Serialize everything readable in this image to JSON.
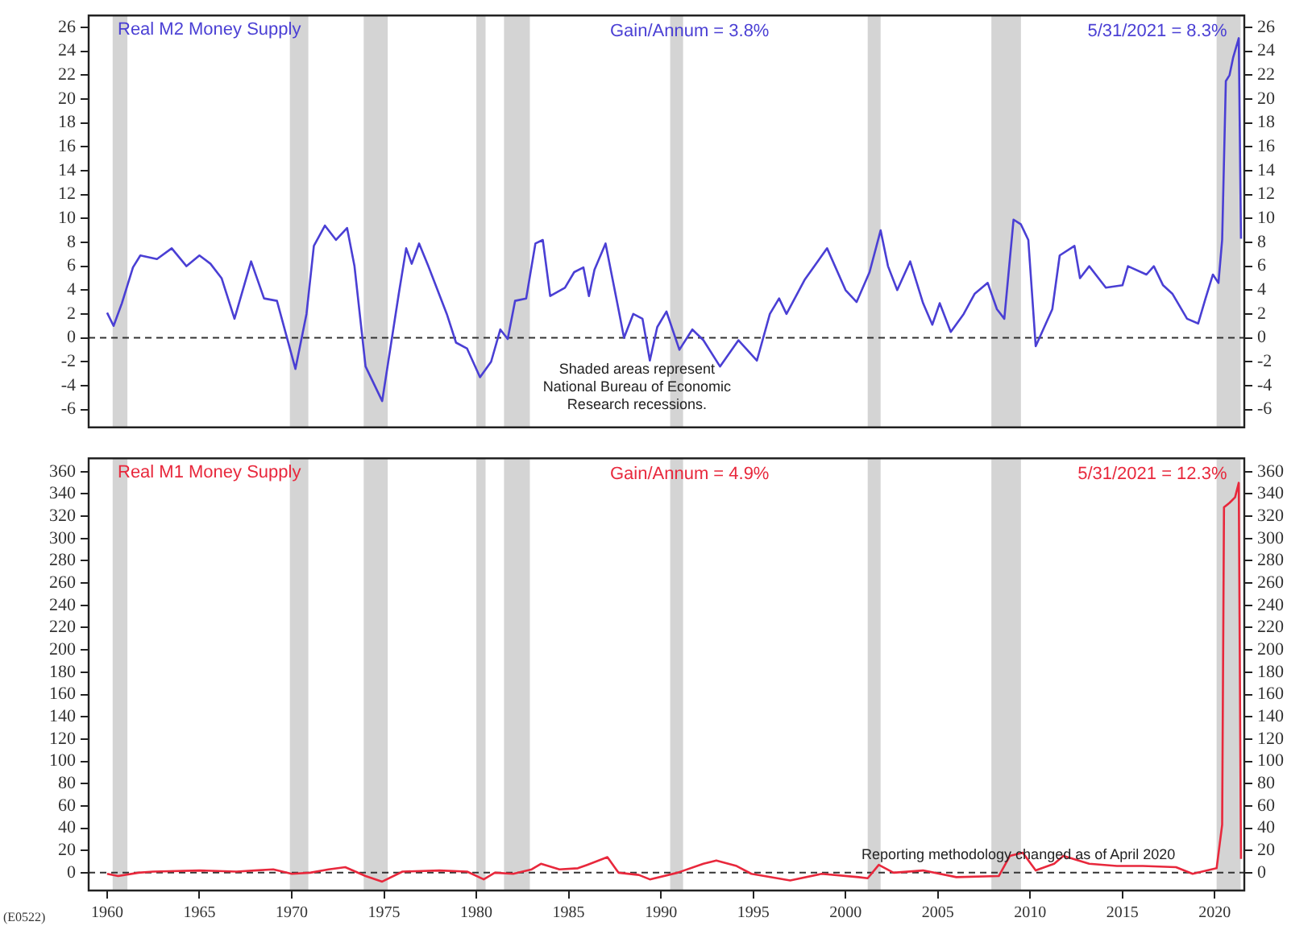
{
  "chart_data": [
    {
      "type": "line",
      "title": "Real M2 Money Supply",
      "marker": "none",
      "line_style": "solid",
      "grid": false,
      "legend": false,
      "tick_labels": "y",
      "xlim": [
        1959,
        2021.6
      ],
      "xticks": [
        1960,
        1965,
        1970,
        1975,
        1980,
        1985,
        1990,
        1995,
        2000,
        2005,
        2010,
        2015,
        2020
      ],
      "ylim": [
        -7.5,
        27
      ],
      "yticks": [
        -6,
        -4,
        -2,
        0,
        2,
        4,
        6,
        8,
        10,
        12,
        14,
        16,
        18,
        20,
        22,
        24,
        26
      ],
      "y2lim": [
        -7.5,
        27
      ],
      "y2ticks": [
        -6,
        -4,
        -2,
        0,
        2,
        4,
        6,
        8,
        10,
        12,
        14,
        16,
        18,
        20,
        22,
        24,
        26
      ],
      "series": [
        {
          "color": "#4a3fd4",
          "x": [
            1960.0,
            1960.35,
            1960.8,
            1961.4,
            1961.8,
            1962.7,
            1963.5,
            1964.3,
            1965.0,
            1965.6,
            1966.2,
            1966.9,
            1967.8,
            1968.5,
            1969.2,
            1970.2,
            1970.8,
            1971.2,
            1971.8,
            1972.4,
            1973.0,
            1973.4,
            1974.0,
            1974.9,
            1975.8,
            1976.2,
            1976.5,
            1976.9,
            1977.4,
            1978.4,
            1978.9,
            1979.5,
            1980.2,
            1980.8,
            1981.3,
            1981.7,
            1982.1,
            1982.7,
            1983.2,
            1983.6,
            1984.0,
            1984.8,
            1985.3,
            1985.8,
            1986.1,
            1986.4,
            1987.0,
            1987.7,
            1988.0,
            1988.5,
            1989.0,
            1989.4,
            1989.8,
            1990.3,
            1991.0,
            1991.7,
            1992.3,
            1993.2,
            1994.2,
            1995.2,
            1995.9,
            1996.4,
            1996.8,
            1997.8,
            1999.0,
            2000.0,
            2000.6,
            2001.3,
            2001.9,
            2002.3,
            2002.8,
            2003.5,
            2004.2,
            2004.7,
            2005.1,
            2005.7,
            2006.4,
            2007.0,
            2007.7,
            2008.2,
            2008.6,
            2009.1,
            2009.5,
            2009.9,
            2010.3,
            2011.2,
            2011.6,
            2012.4,
            2012.7,
            2013.2,
            2014.1,
            2015.0,
            2015.3,
            2016.3,
            2016.7,
            2017.2,
            2017.7,
            2018.5,
            2019.1,
            2019.5,
            2019.9,
            2020.2,
            2020.4,
            2020.6,
            2020.8,
            2021.0,
            2021.3,
            2021.42
          ],
          "values": [
            2.1,
            1.0,
            2.9,
            5.9,
            6.9,
            6.6,
            7.5,
            6.0,
            6.9,
            6.2,
            5.0,
            1.6,
            6.4,
            3.3,
            3.1,
            -2.6,
            2.0,
            7.7,
            9.4,
            8.2,
            9.2,
            6.0,
            -2.4,
            -5.3,
            3.7,
            7.5,
            6.2,
            7.9,
            6.0,
            2.0,
            -0.4,
            -0.9,
            -3.3,
            -2.0,
            0.7,
            -0.1,
            3.1,
            3.3,
            7.9,
            8.2,
            3.5,
            4.2,
            5.5,
            5.9,
            3.5,
            5.7,
            7.9,
            2.4,
            0,
            2.0,
            1.6,
            -1.9,
            0.9,
            2.2,
            -1.0,
            0.7,
            -0.2,
            -2.4,
            -0.2,
            -1.9,
            2.0,
            3.3,
            2.0,
            4.9,
            7.5,
            4.0,
            3.0,
            5.5,
            9.0,
            6.0,
            4.0,
            6.4,
            2.9,
            1.1,
            2.9,
            0.5,
            2.0,
            3.7,
            4.6,
            2.4,
            1.6,
            9.9,
            9.5,
            8.2,
            -0.7,
            2.4,
            6.9,
            7.7,
            5.0,
            6.0,
            4.2,
            4.4,
            6.0,
            5.3,
            6.0,
            4.4,
            3.7,
            1.6,
            1.2,
            3.3,
            5.3,
            4.6,
            8.2,
            21.5,
            22,
            23.5,
            25.1,
            8.3
          ]
        }
      ],
      "ref_lines": [
        {
          "axis": "y",
          "value": 0,
          "color": "#333333",
          "line_style": "dashed"
        }
      ],
      "bands": [
        {
          "axis": "x",
          "from": 1960.3,
          "to": 1961.1,
          "color": "#d4d4d4"
        },
        {
          "axis": "x",
          "from": 1969.9,
          "to": 1970.9,
          "color": "#d4d4d4"
        },
        {
          "axis": "x",
          "from": 1973.9,
          "to": 1975.2,
          "color": "#d4d4d4"
        },
        {
          "axis": "x",
          "from": 1980.0,
          "to": 1980.5,
          "color": "#d4d4d4"
        },
        {
          "axis": "x",
          "from": 1981.5,
          "to": 1982.9,
          "color": "#d4d4d4"
        },
        {
          "axis": "x",
          "from": 1990.5,
          "to": 1991.2,
          "color": "#d4d4d4"
        },
        {
          "axis": "x",
          "from": 2001.2,
          "to": 2001.9,
          "color": "#d4d4d4"
        },
        {
          "axis": "x",
          "from": 2007.9,
          "to": 2009.5,
          "color": "#d4d4d4"
        },
        {
          "axis": "x",
          "from": 2020.1,
          "to": 2021.4,
          "color": "#d4d4d4"
        }
      ],
      "annotations": [
        "Gain/Annum = 3.8%",
        "5/31/2021 = 8.3%",
        "Shaded areas represent National Bureau of Economic Research recessions."
      ]
    },
    {
      "type": "line",
      "title": "Real M1 Money Supply",
      "marker": "none",
      "line_style": "solid",
      "grid": false,
      "legend": false,
      "xlim": [
        1959,
        2021.6
      ],
      "xticks": [
        1960,
        1965,
        1970,
        1975,
        1980,
        1985,
        1990,
        1995,
        2000,
        2005,
        2010,
        2015,
        2020
      ],
      "ylim": [
        -16,
        372
      ],
      "yticks": [
        0,
        20,
        40,
        60,
        80,
        100,
        120,
        140,
        160,
        180,
        200,
        220,
        240,
        260,
        280,
        300,
        320,
        340,
        360
      ],
      "y2lim": [
        -16,
        372
      ],
      "y2ticks": [
        0,
        20,
        40,
        60,
        80,
        100,
        120,
        140,
        160,
        180,
        200,
        220,
        240,
        260,
        280,
        300,
        320,
        340,
        360
      ],
      "series": [
        {
          "color": "#e8283c",
          "x": [
            1960.0,
            1960.6,
            1961.7,
            1962.5,
            1965.0,
            1967.0,
            1968.0,
            1969.0,
            1970.0,
            1971.0,
            1972.0,
            1972.9,
            1974.0,
            1974.9,
            1976.0,
            1978.0,
            1979.5,
            1980.4,
            1981.0,
            1982.0,
            1983.0,
            1983.5,
            1984.5,
            1985.5,
            1986.0,
            1987.1,
            1987.7,
            1988.8,
            1989.4,
            1990.9,
            1992.3,
            1993.0,
            1994.1,
            1994.9,
            1997.0,
            1998.7,
            2000.7,
            2001.2,
            2001.8,
            2002.6,
            2004.2,
            2006.0,
            2008.3,
            2008.9,
            2009.6,
            2010.3,
            2011.3,
            2011.8,
            2013.2,
            2014.7,
            2016.1,
            2017.9,
            2018.8,
            2020.1,
            2020.4,
            2020.5,
            2020.8,
            2021.1,
            2021.3,
            2021.42
          ],
          "values": [
            -1,
            -3,
            0,
            1,
            2,
            1,
            2,
            3,
            -1,
            0,
            3,
            5,
            -3,
            -8,
            1,
            2,
            1,
            -6,
            0,
            -1,
            3,
            8,
            3,
            4,
            7,
            14,
            0,
            -2,
            -6,
            0,
            8,
            11,
            6,
            -1,
            -7,
            -1,
            -4,
            -5,
            7,
            0,
            2,
            -4,
            -3,
            15,
            18,
            2,
            8,
            15,
            8,
            6,
            6,
            5,
            -1,
            4,
            43,
            328,
            332,
            337,
            350,
            12.3
          ]
        }
      ],
      "ref_lines": [
        {
          "axis": "y",
          "value": 0,
          "color": "#333333",
          "line_style": "dashed"
        }
      ],
      "bands": [
        {
          "axis": "x",
          "from": 1960.3,
          "to": 1961.1,
          "color": "#d4d4d4"
        },
        {
          "axis": "x",
          "from": 1969.9,
          "to": 1970.9,
          "color": "#d4d4d4"
        },
        {
          "axis": "x",
          "from": 1973.9,
          "to": 1975.2,
          "color": "#d4d4d4"
        },
        {
          "axis": "x",
          "from": 1980.0,
          "to": 1980.5,
          "color": "#d4d4d4"
        },
        {
          "axis": "x",
          "from": 1981.5,
          "to": 1982.9,
          "color": "#d4d4d4"
        },
        {
          "axis": "x",
          "from": 1990.5,
          "to": 1991.2,
          "color": "#d4d4d4"
        },
        {
          "axis": "x",
          "from": 2001.2,
          "to": 2001.9,
          "color": "#d4d4d4"
        },
        {
          "axis": "x",
          "from": 2007.9,
          "to": 2009.5,
          "color": "#d4d4d4"
        },
        {
          "axis": "x",
          "from": 2020.1,
          "to": 2021.4,
          "color": "#d4d4d4"
        }
      ],
      "annotations": [
        "Gain/Annum = 4.9%",
        "5/31/2021 = 12.3%",
        "Reporting methodology changed as of April 2020",
        "(E0522)"
      ]
    }
  ]
}
